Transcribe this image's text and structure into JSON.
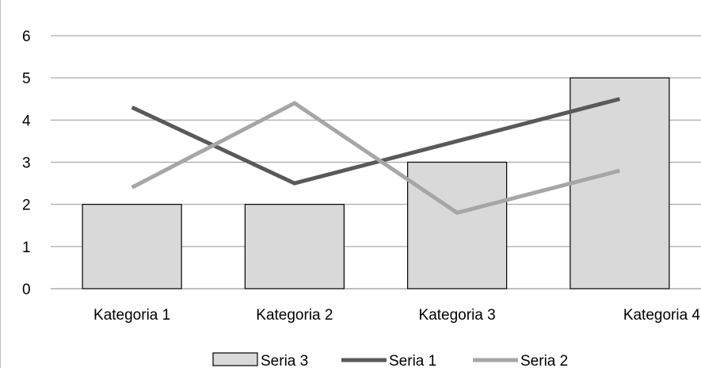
{
  "chart_data": {
    "type": "bar",
    "title": "",
    "xlabel": "",
    "ylabel": "",
    "categories": [
      "Kategoria 1",
      "Kategoria 2",
      "Kategoria 3",
      "Kategoria 4"
    ],
    "ylim": [
      0,
      6
    ],
    "yticks": [
      "0",
      "1",
      "2",
      "3",
      "4",
      "5",
      "6"
    ],
    "grid": true,
    "legend_position": "bottom",
    "series": [
      {
        "name": "Seria 3",
        "kind": "bar",
        "values": [
          2,
          2,
          3,
          5
        ],
        "color": "#d9d9d9"
      },
      {
        "name": "Seria 1",
        "kind": "line",
        "values": [
          4.3,
          2.5,
          3.5,
          4.5
        ],
        "color": "#595959"
      },
      {
        "name": "Seria 2",
        "kind": "line",
        "values": [
          2.4,
          4.4,
          1.8,
          2.8
        ],
        "color": "#a6a6a6"
      }
    ]
  }
}
